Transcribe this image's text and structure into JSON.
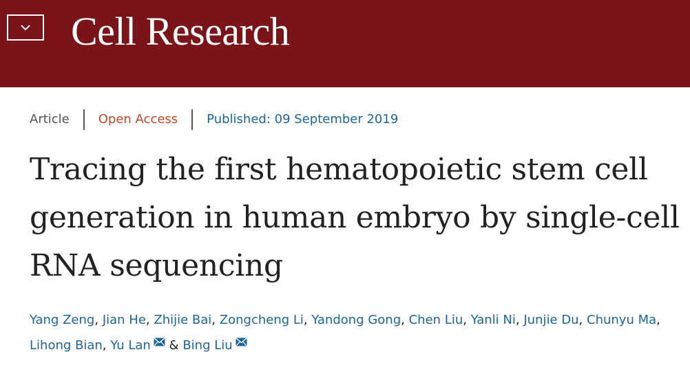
{
  "header": {
    "brand": "Cell Research",
    "menu_icon": "chevron-down-icon",
    "background_color": "#7a141b"
  },
  "article_meta": {
    "type": "Article",
    "access": "Open Access",
    "published_label": "Published:",
    "published_date": "09 September 2019"
  },
  "title": "Tracing the first hematopoietic stem cell generation in human embryo by single-cell RNA sequencing",
  "authors": {
    "list": [
      "Yang Zeng",
      "Jian He",
      "Zhijie Bai",
      "Zongcheng Li",
      "Yandong Gong",
      "Chen Liu",
      "Yanli Ni",
      "Junjie Du",
      "Chunyu Ma",
      "Lihong Bian",
      "Yu Lan",
      "Bing Liu"
    ],
    "separator": ",",
    "last_separator": "&",
    "corresponding_icon": "envelope-icon"
  },
  "colors": {
    "link": "#1f6598",
    "open_access": "#c4492a",
    "muted": "#555555",
    "title": "#222222"
  }
}
